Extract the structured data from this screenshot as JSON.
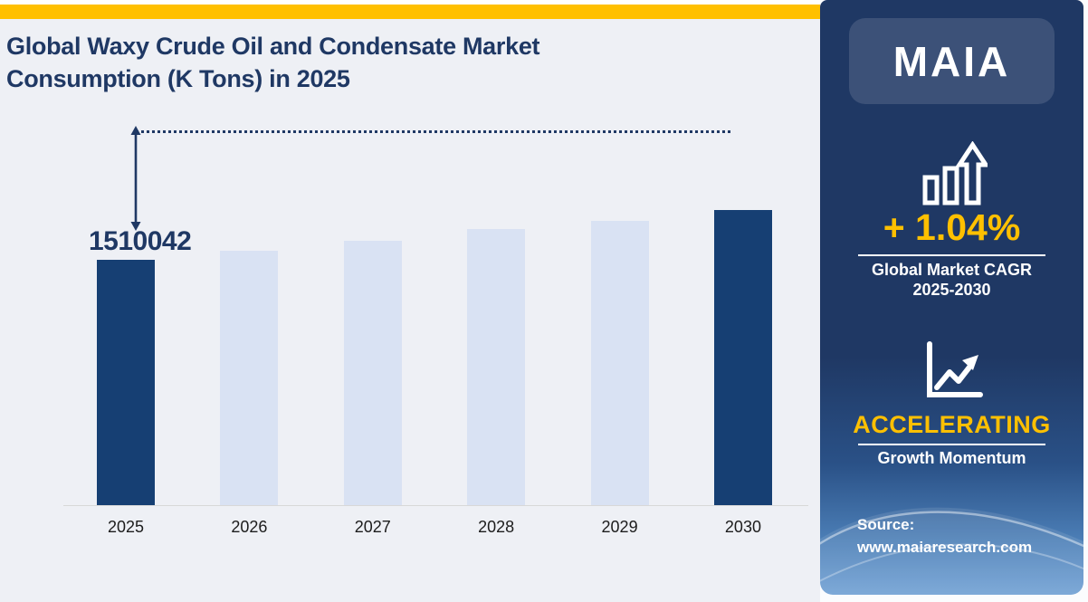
{
  "header": {
    "title_line1": "Global Waxy Crude Oil and Condensate Market",
    "title_line2": "Consumption (K Tons) in 2025"
  },
  "chart_data": {
    "type": "bar",
    "title": "Global Waxy Crude Oil and Condensate Market Consumption (K Tons) in 2025",
    "unit": "K Tons",
    "categories": [
      "2025",
      "2026",
      "2027",
      "2028",
      "2029",
      "2030"
    ],
    "series": [
      {
        "name": "Consumption (K Tons)",
        "values": [
          1510042,
          null,
          null,
          null,
          null,
          null
        ]
      }
    ],
    "labeled_value_2025": "1510042",
    "relative_heights_pct": [
      66.1,
      68.5,
      71.2,
      74.4,
      76.6,
      79.5
    ],
    "bar_colors": [
      "#163F73",
      "#D9E2F3",
      "#D9E2F3",
      "#D9E2F3",
      "#D9E2F3",
      "#163F73"
    ],
    "highlight_color": "#163F73",
    "base_color": "#D9E2F3",
    "value_axis": "hidden",
    "gridlines": false,
    "legend": false,
    "annotations": [
      "dotted projection line at top",
      "double-headed arrow from line to 2025 bar"
    ]
  },
  "sidebar": {
    "brand": "MAIA",
    "cagr_value": "+ 1.04%",
    "cagr_label_line1": "Global Market CAGR",
    "cagr_label_line2": "2025-2030",
    "momentum_status": "ACCELERATING",
    "momentum_label": "Growth Momentum",
    "source_label": "Source:",
    "source_url": "www.maiaresearch.com"
  },
  "colors": {
    "accent_yellow": "#FFC000",
    "navy_text": "#1F3864",
    "dark_bar": "#163F73",
    "light_bar": "#D9E2F3",
    "panel_bg": "#EEF0F5",
    "sidebar_top": "#1F3864",
    "sidebar_bottom": "#6FA0D4"
  }
}
